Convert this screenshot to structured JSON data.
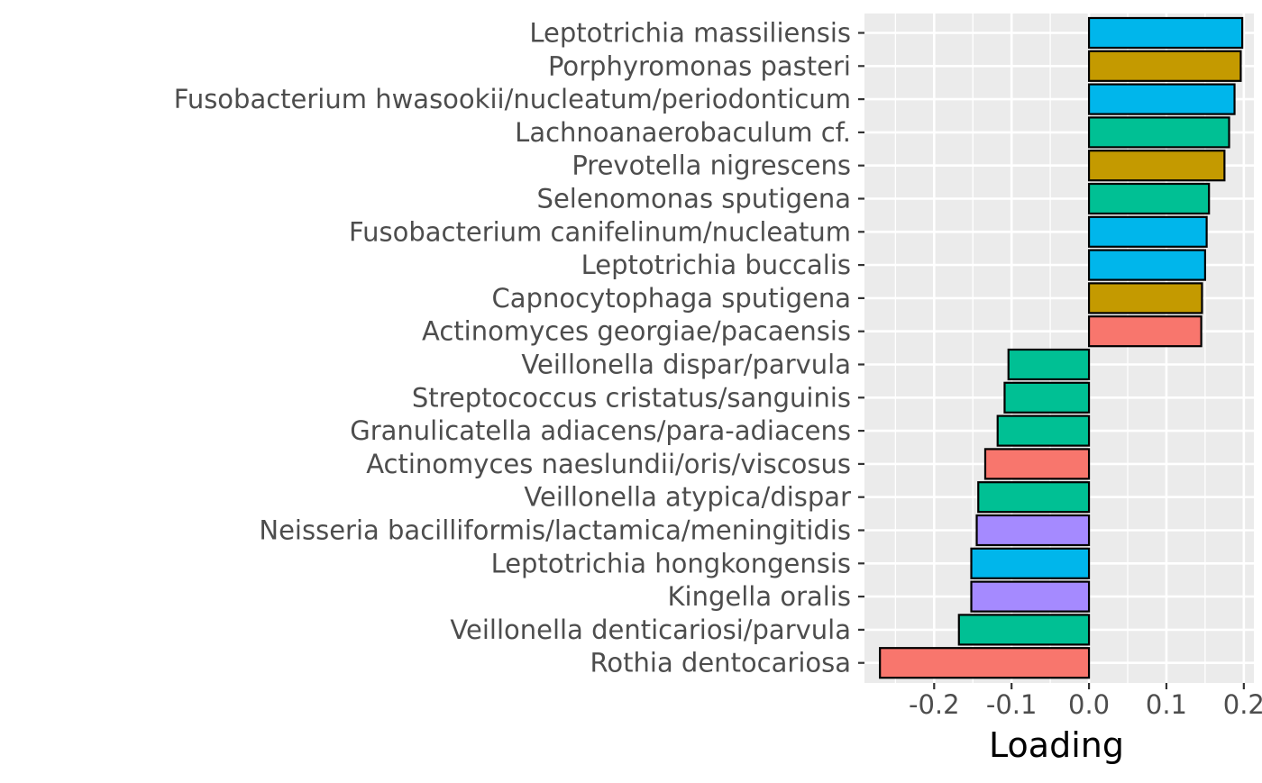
{
  "chart_data": {
    "type": "bar",
    "orientation": "horizontal",
    "title": "",
    "xlabel": "Loading",
    "ylabel": "",
    "xlim": [
      -0.29,
      0.213
    ],
    "x_ticks": [
      -0.2,
      -0.1,
      0.0,
      0.1,
      0.2
    ],
    "x_tick_labels": [
      "-0.2",
      "-0.1",
      "0.0",
      "0.1",
      "0.2"
    ],
    "grid": true,
    "legend": "none",
    "bar_outline_color": "#000000",
    "panel_background": "#ebebeb",
    "grid_color": "#ffffff",
    "bars": [
      {
        "label": "Leptotrichia massiliensis",
        "value": 0.198,
        "color": "#00B6EB"
      },
      {
        "label": "Porphyromonas pasteri",
        "value": 0.196,
        "color": "#C49A00"
      },
      {
        "label": "Fusobacterium hwasookii/nucleatum/periodonticum",
        "value": 0.188,
        "color": "#00B6EB"
      },
      {
        "label": "Lachnoanaerobaculum cf.",
        "value": 0.181,
        "color": "#00C094"
      },
      {
        "label": "Prevotella nigrescens",
        "value": 0.175,
        "color": "#C49A00"
      },
      {
        "label": "Selenomonas sputigena",
        "value": 0.155,
        "color": "#00C094"
      },
      {
        "label": "Fusobacterium canifelinum/nucleatum",
        "value": 0.152,
        "color": "#00B6EB"
      },
      {
        "label": "Leptotrichia buccalis",
        "value": 0.15,
        "color": "#00B6EB"
      },
      {
        "label": "Capnocytophaga sputigena",
        "value": 0.146,
        "color": "#C49A00"
      },
      {
        "label": "Actinomyces georgiae/pacaensis",
        "value": 0.145,
        "color": "#F8766D"
      },
      {
        "label": "Veillonella dispar/parvula",
        "value": -0.104,
        "color": "#00C094"
      },
      {
        "label": "Streptococcus cristatus/sanguinis",
        "value": -0.109,
        "color": "#00C094"
      },
      {
        "label": "Granulicatella adiacens/para-adiacens",
        "value": -0.118,
        "color": "#00C094"
      },
      {
        "label": "Actinomyces naeslundii/oris/viscosus",
        "value": -0.134,
        "color": "#F8766D"
      },
      {
        "label": "Veillonella atypica/dispar",
        "value": -0.143,
        "color": "#00C094"
      },
      {
        "label": "Neisseria bacilliformis/lactamica/meningitidis",
        "value": -0.145,
        "color": "#A58AFF"
      },
      {
        "label": "Leptotrichia hongkongensis",
        "value": -0.152,
        "color": "#00B6EB"
      },
      {
        "label": "Kingella oralis",
        "value": -0.152,
        "color": "#A58AFF"
      },
      {
        "label": "Veillonella denticariosi/parvula",
        "value": -0.168,
        "color": "#00C094"
      },
      {
        "label": "Rothia dentocariosa",
        "value": -0.27,
        "color": "#F8766D"
      }
    ]
  }
}
